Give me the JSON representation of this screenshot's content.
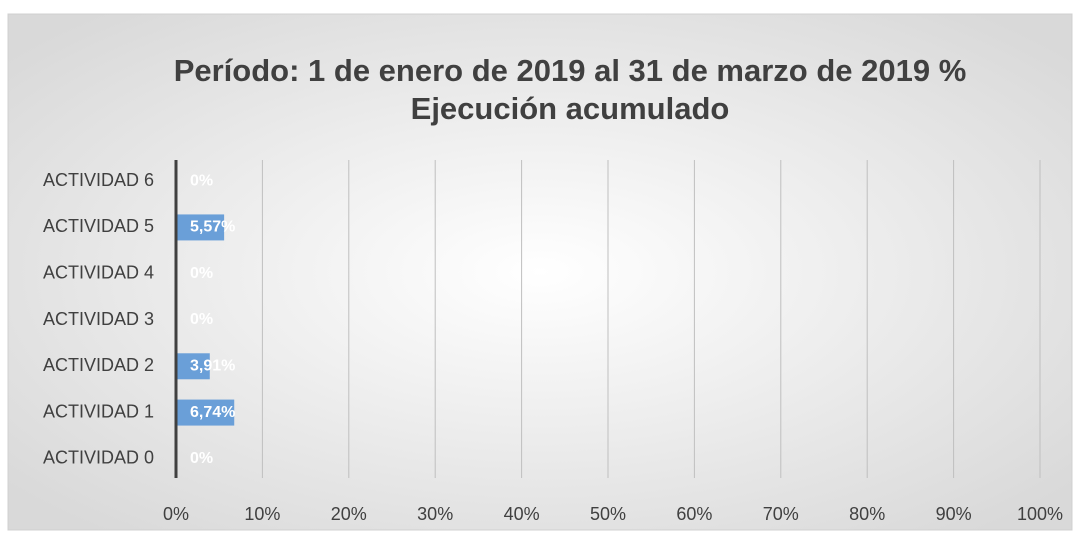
{
  "chart_data": {
    "type": "bar",
    "orientation": "horizontal",
    "title": [
      "Período: 1 de enero de 2019 al 31 de  marzo de 2019 %",
      "Ejecución acumulado"
    ],
    "categories": [
      "ACTIVIDAD 0",
      "ACTIVIDAD 1",
      "ACTIVIDAD 2",
      "ACTIVIDAD 3",
      "ACTIVIDAD 4",
      "ACTIVIDAD 5",
      "ACTIVIDAD 6"
    ],
    "values": [
      0,
      6.74,
      3.91,
      0,
      0,
      5.57,
      0
    ],
    "value_labels": [
      "0%",
      "6,74%",
      "3,91%",
      "0%",
      "0%",
      "5,57%",
      "0%"
    ],
    "color": "#6a9fd8",
    "xlim": [
      0,
      100
    ],
    "xticks": [
      {
        "value": 0,
        "label": "0%"
      },
      {
        "value": 10,
        "label": "10%"
      },
      {
        "value": 20,
        "label": "20%"
      },
      {
        "value": 30,
        "label": "30%"
      },
      {
        "value": 40,
        "label": "40%"
      },
      {
        "value": 50,
        "label": "50%"
      },
      {
        "value": 60,
        "label": "60%"
      },
      {
        "value": 70,
        "label": "70%"
      },
      {
        "value": 80,
        "label": "80%"
      },
      {
        "value": 90,
        "label": "90%"
      },
      {
        "value": 100,
        "label": "100%"
      }
    ],
    "grid": true
  }
}
